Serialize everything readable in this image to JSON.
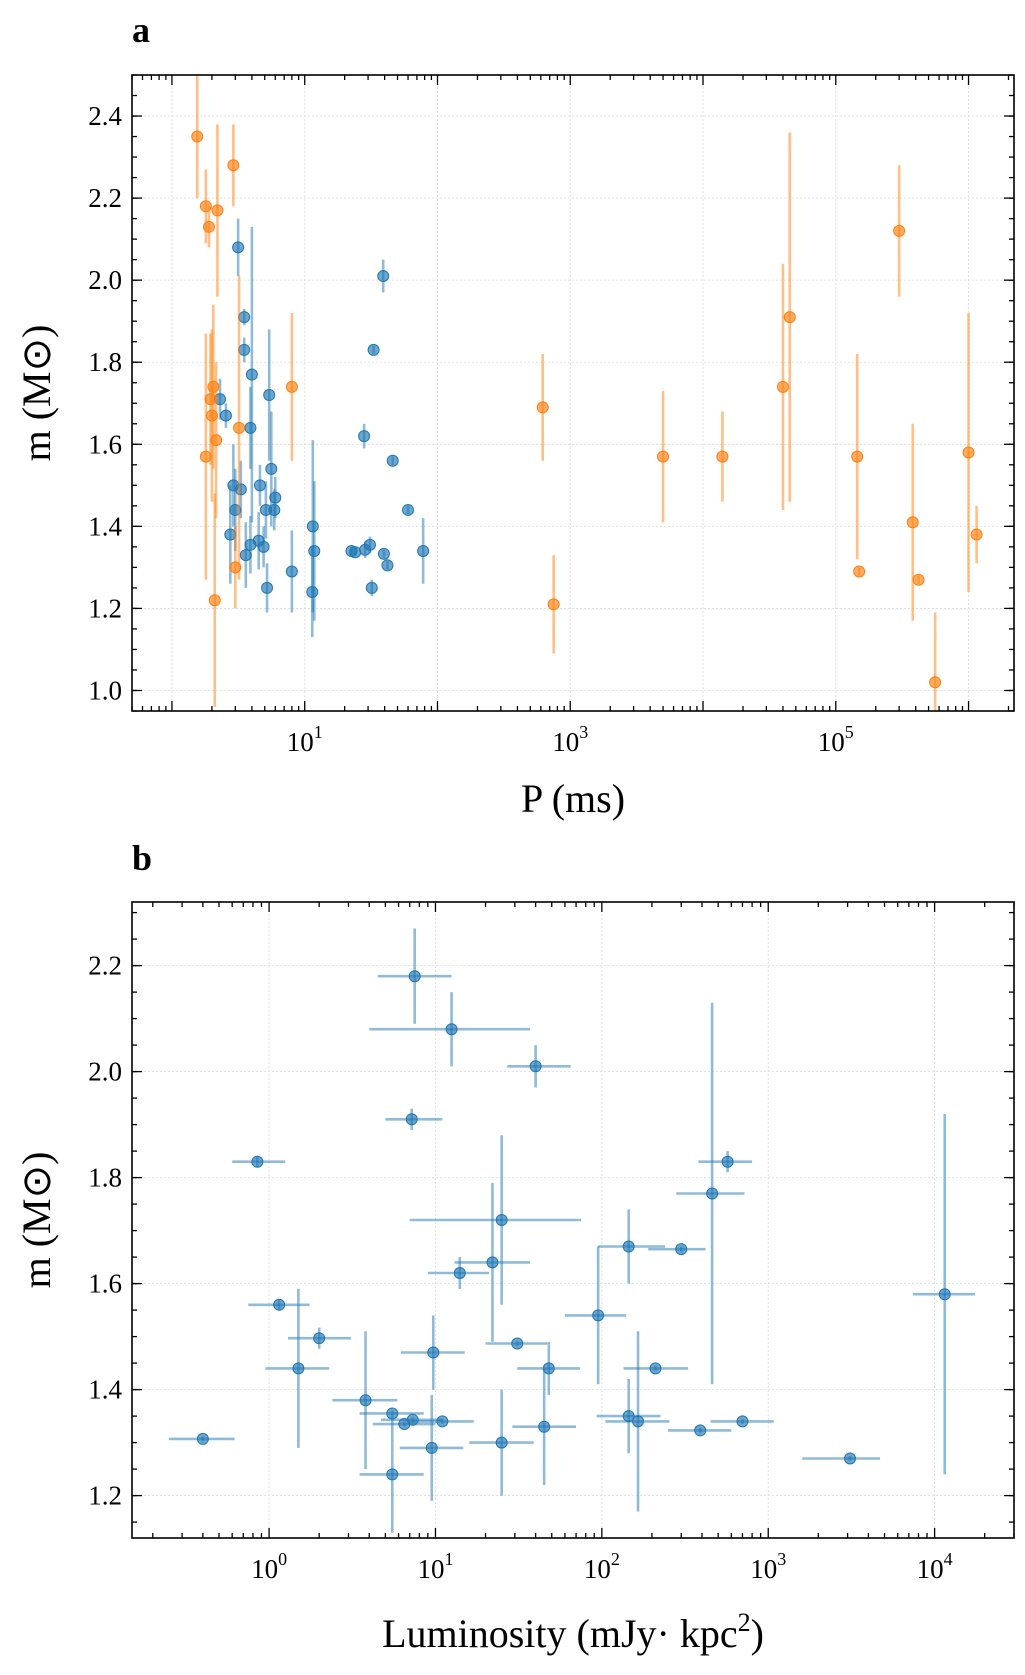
{
  "colors": {
    "msp": "#1f77b4",
    "other": "#ff7f0e"
  },
  "chart_data": [
    {
      "type": "scatter",
      "panel_label": "a",
      "xlabel": "P (ms)",
      "ylabel": "m (M⊙)",
      "xscale": "log",
      "xlim": [
        0.5,
        2200000
      ],
      "ylim": [
        0.95,
        2.5
      ],
      "xticks": [
        {
          "value": 10,
          "base": "10",
          "exp": "1"
        },
        {
          "value": 1000,
          "base": "10",
          "exp": "3"
        },
        {
          "value": 100000,
          "base": "10",
          "exp": "5"
        }
      ],
      "yticks": [
        1.0,
        1.2,
        1.4,
        1.6,
        1.8,
        2.0,
        2.2,
        2.4
      ],
      "grid": true,
      "series": [
        {
          "color": "msp",
          "points": [
            {
              "x": 3.15,
              "y": 2.08,
              "yerr": 0.07
            },
            {
              "x": 3.5,
              "y": 1.91,
              "yerr": 0.02
            },
            {
              "x": 3.5,
              "y": 1.83,
              "yerr": 0.03
            },
            {
              "x": 4.0,
              "y": 1.77,
              "yerr": 0.36
            },
            {
              "x": 2.3,
              "y": 1.71,
              "yerr": 0.05
            },
            {
              "x": 2.55,
              "y": 1.67,
              "yerr": 0.03
            },
            {
              "x": 3.9,
              "y": 1.64,
              "yerr": 0.1
            },
            {
              "x": 5.4,
              "y": 1.72,
              "yerr": 0.16
            },
            {
              "x": 5.6,
              "y": 1.54,
              "yerr": 0.14
            },
            {
              "x": 2.9,
              "y": 1.5,
              "yerr": 0.1
            },
            {
              "x": 3.3,
              "y": 1.49,
              "yerr": 0.07
            },
            {
              "x": 4.6,
              "y": 1.5,
              "yerr": 0.05
            },
            {
              "x": 6.0,
              "y": 1.47,
              "yerr": 0.05
            },
            {
              "x": 3.0,
              "y": 1.44,
              "yerr": 0.1
            },
            {
              "x": 5.1,
              "y": 1.44,
              "yerr": 0.07
            },
            {
              "x": 5.9,
              "y": 1.44,
              "yerr": 0.05
            },
            {
              "x": 2.75,
              "y": 1.38,
              "yerr": 0.12
            },
            {
              "x": 3.9,
              "y": 1.355,
              "yerr": 0.07
            },
            {
              "x": 4.5,
              "y": 1.365,
              "yerr": 0.07
            },
            {
              "x": 4.9,
              "y": 1.35,
              "yerr": 0.05
            },
            {
              "x": 3.6,
              "y": 1.33,
              "yerr": 0.08
            },
            {
              "x": 5.2,
              "y": 1.25,
              "yerr": 0.06
            },
            {
              "x": 8.0,
              "y": 1.29,
              "yerr": 0.1
            },
            {
              "x": 11.5,
              "y": 1.4,
              "yerr": 0.21
            },
            {
              "x": 11.8,
              "y": 1.34,
              "yerr": 0.17
            },
            {
              "x": 11.4,
              "y": 1.24,
              "yerr": 0.11
            },
            {
              "x": 22.5,
              "y": 1.34,
              "yerr": 0.01
            },
            {
              "x": 24.0,
              "y": 1.337,
              "yerr": 0.01
            },
            {
              "x": 28.5,
              "y": 1.343,
              "yerr": 0.02
            },
            {
              "x": 31.0,
              "y": 1.355,
              "yerr": 0.02
            },
            {
              "x": 28.0,
              "y": 1.62,
              "yerr": 0.03
            },
            {
              "x": 33.0,
              "y": 1.83,
              "yerr": 0.01
            },
            {
              "x": 32.0,
              "y": 1.25,
              "yerr": 0.02
            },
            {
              "x": 39.0,
              "y": 2.01,
              "yerr": 0.04
            },
            {
              "x": 39.5,
              "y": 1.333,
              "yerr": 0.01
            },
            {
              "x": 42.0,
              "y": 1.305,
              "yerr": 0.01
            },
            {
              "x": 46.0,
              "y": 1.56,
              "yerr": 0.01
            },
            {
              "x": 60.0,
              "y": 1.44,
              "yerr": 0.01
            },
            {
              "x": 78.0,
              "y": 1.34,
              "yerr": 0.08
            }
          ]
        },
        {
          "color": "other",
          "points": [
            {
              "x": 1.55,
              "y": 2.35,
              "yerr": 0.15
            },
            {
              "x": 1.8,
              "y": 2.18,
              "yerr": 0.09
            },
            {
              "x": 1.9,
              "y": 2.13,
              "yerr": 0.05
            },
            {
              "x": 2.2,
              "y": 2.17,
              "yerr": 0.21
            },
            {
              "x": 2.9,
              "y": 2.28,
              "yerr": 0.1
            },
            {
              "x": 1.95,
              "y": 1.71,
              "yerr": 0.16
            },
            {
              "x": 2.05,
              "y": 1.74,
              "yerr": 0.2
            },
            {
              "x": 2.0,
              "y": 1.67,
              "yerr": 0.21
            },
            {
              "x": 2.15,
              "y": 1.61,
              "yerr": 0.19
            },
            {
              "x": 1.8,
              "y": 1.57,
              "yerr": 0.3
            },
            {
              "x": 2.1,
              "y": 1.22,
              "yerr": 0.26
            },
            {
              "x": 3.2,
              "y": 1.64,
              "yerr": 0.37
            },
            {
              "x": 3.0,
              "y": 1.3,
              "yerr": 0.1
            },
            {
              "x": 8.0,
              "y": 1.74,
              "yerr": 0.18
            },
            {
              "x": 620,
              "y": 1.69,
              "yerr": 0.13
            },
            {
              "x": 750,
              "y": 1.21,
              "yerr": 0.12
            },
            {
              "x": 5000,
              "y": 1.57,
              "yerr": 0.16
            },
            {
              "x": 14000,
              "y": 1.57,
              "yerr": 0.11
            },
            {
              "x": 40000,
              "y": 1.74,
              "yerr": 0.3
            },
            {
              "x": 45000,
              "y": 1.91,
              "yerr": 0.45
            },
            {
              "x": 145000,
              "y": 1.57,
              "yerr": 0.25
            },
            {
              "x": 150000,
              "y": 1.29,
              "yerr": 0.01
            },
            {
              "x": 300000,
              "y": 2.12,
              "yerr": 0.16
            },
            {
              "x": 380000,
              "y": 1.41,
              "yerr": 0.24
            },
            {
              "x": 420000,
              "y": 1.27,
              "yerr": 0.01
            },
            {
              "x": 560000,
              "y": 1.02,
              "yerr": 0.17
            },
            {
              "x": 1000000,
              "y": 1.58,
              "yerr": 0.34
            },
            {
              "x": 1150000,
              "y": 1.38,
              "yerr": 0.07
            }
          ]
        }
      ]
    },
    {
      "type": "scatter",
      "panel_label": "b",
      "xlabel": "Luminosity (mJy· kpc",
      "xlabel_sup": "2",
      "xlabel_end": ")",
      "ylabel": "m (M⊙)",
      "xscale": "log",
      "xlim": [
        0.15,
        30000
      ],
      "ylim": [
        1.12,
        2.32
      ],
      "xticks": [
        {
          "value": 1,
          "base": "10",
          "exp": "0"
        },
        {
          "value": 10,
          "base": "10",
          "exp": "1"
        },
        {
          "value": 100,
          "base": "10",
          "exp": "2"
        },
        {
          "value": 1000,
          "base": "10",
          "exp": "3"
        },
        {
          "value": 10000,
          "base": "10",
          "exp": "4"
        }
      ],
      "yticks": [
        1.2,
        1.4,
        1.6,
        1.8,
        2.0,
        2.2
      ],
      "grid": true,
      "series": [
        {
          "color": "msp",
          "points": [
            {
              "x": 7.5,
              "y": 2.18,
              "xlo": 4.5,
              "xhi": 12.5,
              "yerr": 0.09
            },
            {
              "x": 12.5,
              "y": 2.08,
              "xlo": 4.0,
              "xhi": 37.0,
              "yerr": 0.07
            },
            {
              "x": 40.0,
              "y": 2.01,
              "xlo": 27.0,
              "xhi": 65.0,
              "yerr": 0.04
            },
            {
              "x": 7.2,
              "y": 1.91,
              "xlo": 5.0,
              "xhi": 11.0,
              "yerr": 0.02
            },
            {
              "x": 0.85,
              "y": 1.83,
              "xlo": 0.6,
              "xhi": 1.25,
              "yerr": 0.01
            },
            {
              "x": 570,
              "y": 1.83,
              "xlo": 380,
              "xhi": 800,
              "yerr": 0.02
            },
            {
              "x": 460,
              "y": 1.77,
              "xlo": 280,
              "xhi": 720,
              "yerr": 0.36
            },
            {
              "x": 25.0,
              "y": 1.72,
              "xlo": 7.0,
              "xhi": 75.0,
              "yerr": 0.16
            },
            {
              "x": 145,
              "y": 1.67,
              "xlo": 95,
              "xhi": 240,
              "yerr": 0.07
            },
            {
              "x": 300,
              "y": 1.665,
              "xlo": 190,
              "xhi": 420,
              "yerr": 0.005
            },
            {
              "x": 22.0,
              "y": 1.64,
              "xlo": 13.0,
              "xhi": 37.0,
              "yerr": 0.15
            },
            {
              "x": 14.0,
              "y": 1.62,
              "xlo": 9.0,
              "xhi": 21.0,
              "yerr": 0.03
            },
            {
              "x": 1.15,
              "y": 1.56,
              "xlo": 0.75,
              "xhi": 1.75,
              "yerr": 0.01
            },
            {
              "x": 95,
              "y": 1.54,
              "xlo": 60,
              "xhi": 140,
              "yerr": 0.13
            },
            {
              "x": 2.0,
              "y": 1.497,
              "xlo": 1.3,
              "xhi": 3.1,
              "yerr": 0.02
            },
            {
              "x": 31.0,
              "y": 1.487,
              "xlo": 20.0,
              "xhi": 47.0,
              "yerr": 0.005
            },
            {
              "x": 9.7,
              "y": 1.47,
              "xlo": 6.2,
              "xhi": 15.0,
              "yerr": 0.07
            },
            {
              "x": 1.5,
              "y": 1.44,
              "xlo": 0.95,
              "xhi": 2.3,
              "yerr": 0.15
            },
            {
              "x": 48.0,
              "y": 1.44,
              "xlo": 31.0,
              "xhi": 74.0,
              "yerr": 0.05
            },
            {
              "x": 210,
              "y": 1.44,
              "xlo": 135,
              "xhi": 330,
              "yerr": 0.005
            },
            {
              "x": 3.8,
              "y": 1.38,
              "xlo": 2.4,
              "xhi": 5.9,
              "yerr": 0.13
            },
            {
              "x": 5.5,
              "y": 1.355,
              "xlo": 3.5,
              "xhi": 8.5,
              "yerr": 0.005
            },
            {
              "x": 7.3,
              "y": 1.343,
              "xlo": 4.7,
              "xhi": 11.0,
              "yerr": 0.005
            },
            {
              "x": 6.5,
              "y": 1.335,
              "xlo": 4.2,
              "xhi": 10.0,
              "yerr": 0.005
            },
            {
              "x": 11.0,
              "y": 1.34,
              "xlo": 7.0,
              "xhi": 17.0,
              "yerr": 0.005
            },
            {
              "x": 145,
              "y": 1.35,
              "xlo": 93,
              "xhi": 225,
              "yerr": 0.07
            },
            {
              "x": 165,
              "y": 1.34,
              "xlo": 105,
              "xhi": 255,
              "yerr": 0.17
            },
            {
              "x": 700,
              "y": 1.34,
              "xlo": 450,
              "xhi": 1080,
              "yerr": 0.005
            },
            {
              "x": 45.0,
              "y": 1.33,
              "xlo": 29.0,
              "xhi": 70.0,
              "yerr": 0.11
            },
            {
              "x": 390,
              "y": 1.323,
              "xlo": 250,
              "xhi": 600,
              "yerr": 0.005
            },
            {
              "x": 0.4,
              "y": 1.307,
              "xlo": 0.25,
              "xhi": 0.62,
              "yerr": 0.005
            },
            {
              "x": 25.0,
              "y": 1.3,
              "xlo": 16.0,
              "xhi": 39.0,
              "yerr": 0.1
            },
            {
              "x": 9.5,
              "y": 1.29,
              "xlo": 6.1,
              "xhi": 14.7,
              "yerr": 0.1
            },
            {
              "x": 3100,
              "y": 1.27,
              "xlo": 1600,
              "xhi": 4700,
              "yerr": 0.005
            },
            {
              "x": 5.5,
              "y": 1.24,
              "xlo": 3.5,
              "xhi": 8.5,
              "yerr": 0.11
            },
            {
              "x": 11500,
              "y": 1.58,
              "xlo": 7400,
              "xhi": 17500,
              "yerr": 0.34
            }
          ]
        }
      ]
    }
  ]
}
